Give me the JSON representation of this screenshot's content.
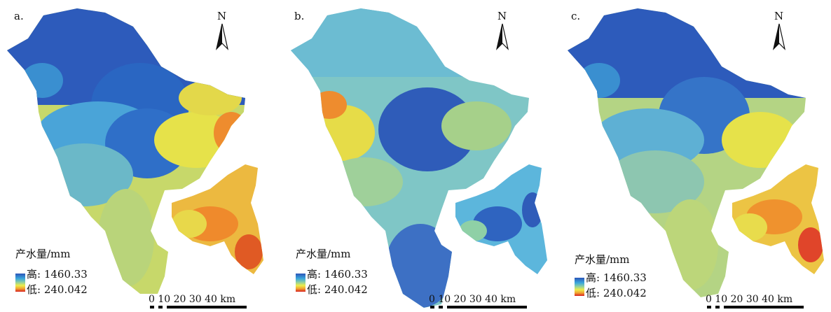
{
  "panels": [
    {
      "label": "a.",
      "id": "a"
    },
    {
      "label": "b.",
      "id": "b"
    },
    {
      "label": "c.",
      "id": "c"
    }
  ],
  "north_letter": "N",
  "legend": {
    "title": "产水量/mm",
    "high_label": "高: 1460.33",
    "low_label": "低: 240.042",
    "colors": [
      "#2b55b8",
      "#3aa7dc",
      "#8fd0a0",
      "#eded4a",
      "#f0a030",
      "#d81f1f"
    ]
  },
  "scalebar": {
    "labels": "0  10   20   30   40 km"
  }
}
